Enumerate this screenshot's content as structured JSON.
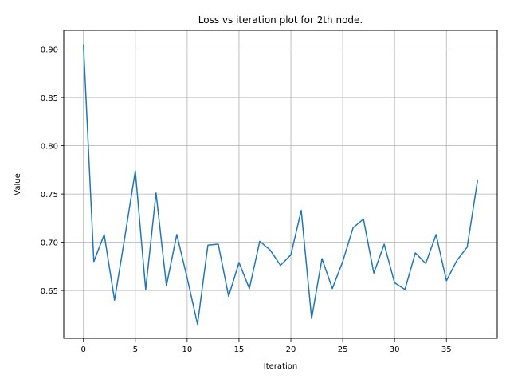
{
  "chart_data": {
    "type": "line",
    "title": "Loss vs iteration plot for 2th node.",
    "xlabel": "Iteration",
    "ylabel": "Value",
    "xlim": [
      -1.9,
      39.9
    ],
    "ylim": [
      0.6005,
      0.9195
    ],
    "grid": true,
    "x_ticks": [
      0,
      5,
      10,
      15,
      20,
      25,
      30,
      35
    ],
    "y_ticks": [
      0.65,
      0.7,
      0.75,
      0.8,
      0.85,
      0.9
    ],
    "y_tick_labels": [
      "0.65",
      "0.70",
      "0.75",
      "0.80",
      "0.85",
      "0.90"
    ],
    "series": [
      {
        "color": "#1f77b4",
        "x": [
          0,
          1,
          2,
          3,
          4,
          5,
          6,
          7,
          8,
          9,
          10,
          11,
          12,
          13,
          14,
          15,
          16,
          17,
          18,
          19,
          20,
          21,
          22,
          23,
          24,
          25,
          26,
          27,
          28,
          29,
          30,
          31,
          32,
          33,
          34,
          35,
          36,
          37,
          38
        ],
        "values": [
          0.905,
          0.68,
          0.708,
          0.64,
          0.706,
          0.774,
          0.651,
          0.751,
          0.655,
          0.708,
          0.663,
          0.615,
          0.697,
          0.698,
          0.644,
          0.679,
          0.652,
          0.701,
          0.692,
          0.676,
          0.687,
          0.733,
          0.621,
          0.683,
          0.652,
          0.68,
          0.715,
          0.724,
          0.668,
          0.698,
          0.658,
          0.651,
          0.689,
          0.678,
          0.708,
          0.66,
          0.681,
          0.695,
          0.764
        ]
      }
    ]
  }
}
